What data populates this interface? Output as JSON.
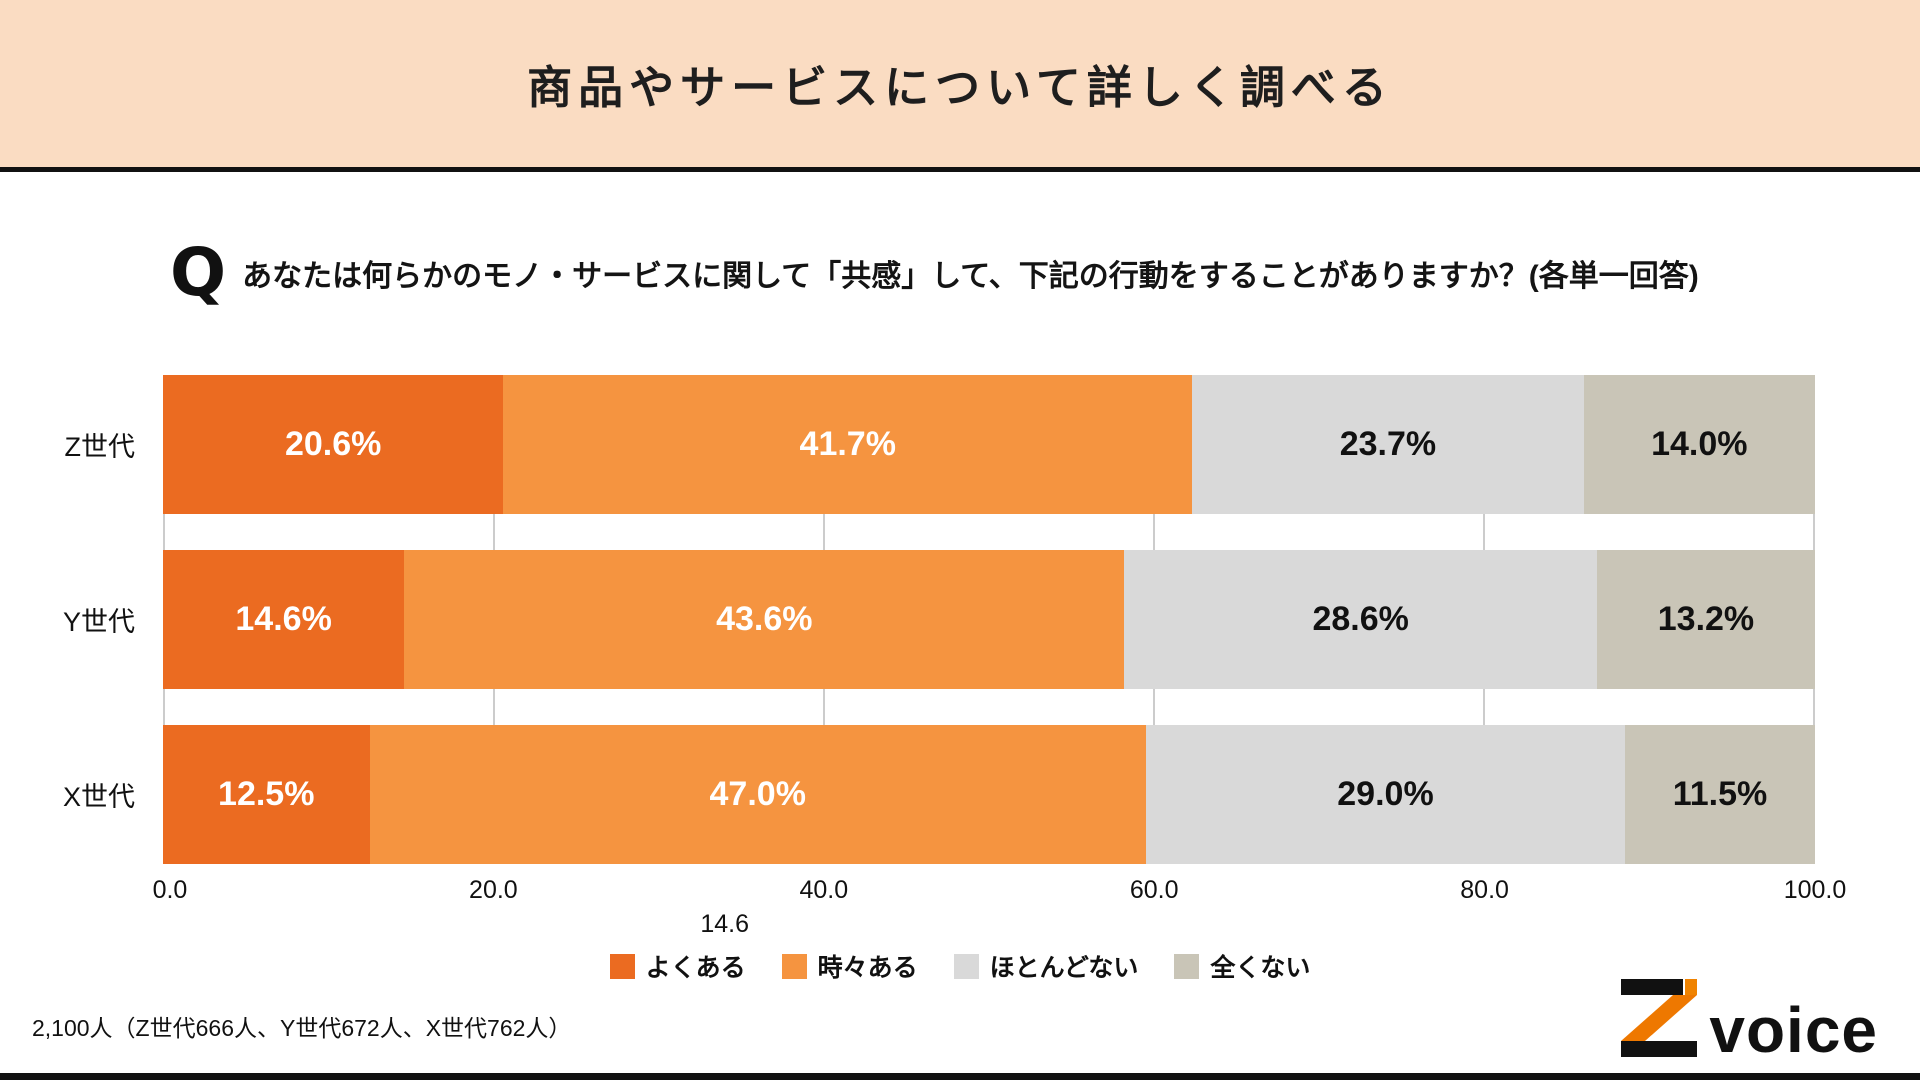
{
  "header": {
    "title": "商品やサービスについて詳しく調べる"
  },
  "question": {
    "icon": "Q",
    "text": "あなたは何らかのモノ・サービスに関して「共感」して、下記の行動をすることがありますか？(各単一回答)"
  },
  "chart_data": {
    "type": "bar",
    "stacked": true,
    "orientation": "horizontal",
    "title": "商品やサービスについて詳しく調べる",
    "categories": [
      "Z世代",
      "Y世代",
      "X世代"
    ],
    "series": [
      {
        "name": "よくある",
        "color": "#EB6B21",
        "label_color": "#ffffff",
        "values": [
          20.6,
          14.6,
          12.5
        ]
      },
      {
        "name": "時々ある",
        "color": "#F59440",
        "label_color": "#ffffff",
        "values": [
          41.7,
          43.6,
          47.0
        ]
      },
      {
        "name": "ほとんどない",
        "color": "#D9D9D9",
        "label_color": "#111111",
        "values": [
          23.7,
          28.6,
          29.0
        ]
      },
      {
        "name": "全くない",
        "color": "#C9C5B7",
        "label_color": "#111111",
        "values": [
          14.0,
          13.2,
          11.5
        ]
      }
    ],
    "xlim": [
      0,
      100
    ],
    "x_ticks": [
      "0.0",
      "20.0",
      "40.0",
      "60.0",
      "80.0",
      "100.0"
    ],
    "axis_annotation": "14.6",
    "legend_position": "bottom",
    "grid": true
  },
  "footer": {
    "sample_note": "2,100人（Z世代666人、Y世代672人、X世代762人）",
    "logo_text": "voice"
  },
  "colors": {
    "header_bg": "#FADCC2",
    "accent_dark_orange": "#EB6B21",
    "accent_orange": "#F59440",
    "gray_light": "#D9D9D9",
    "gray_taupe": "#C9C5B7",
    "border": "#111111"
  }
}
